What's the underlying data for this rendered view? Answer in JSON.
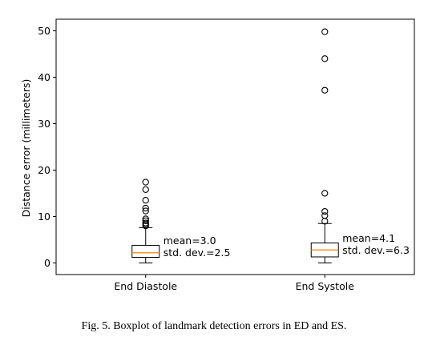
{
  "chart_data": {
    "type": "boxplot",
    "ylabel": "Distance error (millimeters)",
    "ylim": [
      -2.5,
      52.5
    ],
    "yticks": [
      0,
      10,
      20,
      30,
      40,
      50
    ],
    "grid": false,
    "categories": [
      "End Diastole",
      "End Systole"
    ],
    "boxes": [
      {
        "category": "End Diastole",
        "whisker_low": 0,
        "q1": 1.2,
        "median": 2.2,
        "q3": 3.8,
        "whisker_high": 7.6,
        "outliers": [
          8.0,
          8.3,
          8.6,
          9.1,
          9.5,
          11.2,
          11.8,
          13.5,
          15.8,
          17.4
        ],
        "mean_label": "mean=3.0",
        "std_label": "std. dev.=2.5"
      },
      {
        "category": "End Systole",
        "whisker_low": 0,
        "q1": 1.3,
        "median": 2.8,
        "q3": 4.3,
        "whisker_high": 8.5,
        "outliers": [
          9.0,
          10.2,
          11.1,
          15.0,
          37.2,
          44.0,
          49.8
        ],
        "mean_label": "mean=4.1",
        "std_label": "std. dev.=6.3"
      }
    ],
    "colors": {
      "box": "#000000",
      "median": "#ff7f0e"
    }
  },
  "caption": "Fig. 5.  Boxplot of landmark detection errors in ED and ES."
}
